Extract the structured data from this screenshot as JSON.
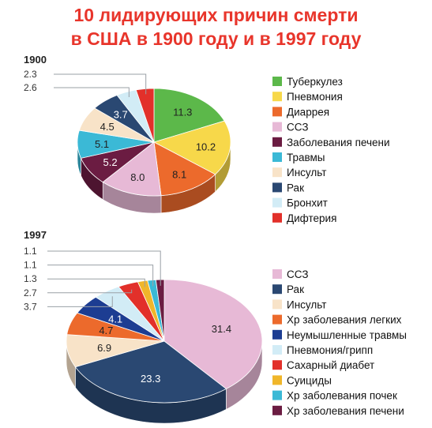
{
  "title": {
    "line1": "10 лидирующих причин смерти",
    "line2": "в США в 1900 году и в 1997 году"
  },
  "chart_data": [
    {
      "type": "pie",
      "title": "1900",
      "legend_position": "right",
      "slices": [
        {
          "label": "Туберкулез",
          "value": 11.3,
          "color": "#5cb84a"
        },
        {
          "label": "Пневмония",
          "value": 10.2,
          "color": "#f7d84a"
        },
        {
          "label": "Диаррея",
          "value": 8.1,
          "color": "#ec6a2c"
        },
        {
          "label": "ССЗ",
          "value": 8.0,
          "color": "#e7b9d6"
        },
        {
          "label": "Заболевания печени",
          "value": 5.2,
          "color": "#6b1c42"
        },
        {
          "label": "Травмы",
          "value": 5.1,
          "color": "#3bb9d6"
        },
        {
          "label": "Инсульт",
          "value": 4.5,
          "color": "#f8e3c8"
        },
        {
          "label": "Рак",
          "value": 3.7,
          "color": "#2a4872"
        },
        {
          "label": "Бронхит",
          "value": 2.6,
          "color": "#d2ecf6"
        },
        {
          "label": "Дифтерия",
          "value": 2.3,
          "color": "#e2302a"
        }
      ]
    },
    {
      "type": "pie",
      "title": "1997",
      "legend_position": "right",
      "slices": [
        {
          "label": "ССЗ",
          "value": 31.4,
          "color": "#e7b9d6"
        },
        {
          "label": "Рак",
          "value": 23.3,
          "color": "#2a4872"
        },
        {
          "label": "Инсульт",
          "value": 6.9,
          "color": "#f8e3c8"
        },
        {
          "label": "Хр заболевания легких",
          "value": 4.7,
          "color": "#ec6a2c"
        },
        {
          "label": "Неумышленные травмы",
          "value": 4.1,
          "color": "#1d3d92"
        },
        {
          "label": "Пневмония/грипп",
          "value": 3.7,
          "color": "#d2ecf6"
        },
        {
          "label": "Сахарный диабет",
          "value": 2.7,
          "color": "#e2302a"
        },
        {
          "label": "Суициды",
          "value": 1.3,
          "color": "#f0b62a"
        },
        {
          "label": "Хр заболевания почек",
          "value": 1.1,
          "color": "#3bb9d6"
        },
        {
          "label": "Хр заболевания печени",
          "value": 1.1,
          "color": "#6b1c42"
        }
      ]
    }
  ]
}
